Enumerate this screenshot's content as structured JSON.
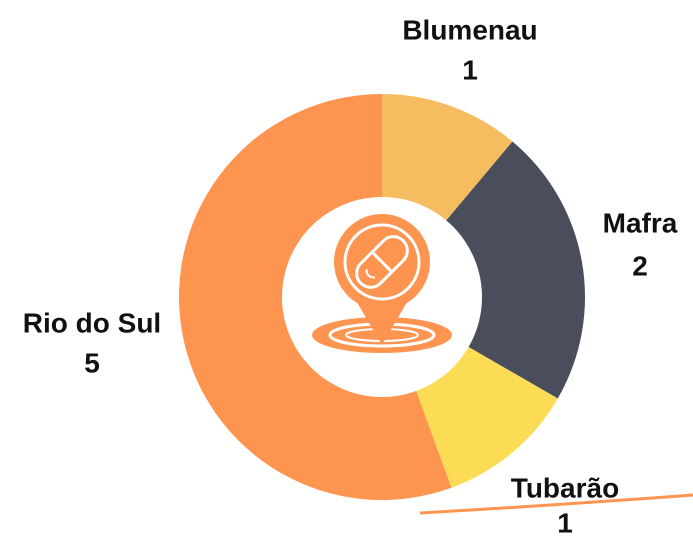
{
  "chart_data": {
    "type": "donut",
    "categories": [
      "Blumenau",
      "Mafra",
      "Tubarão",
      "Rio do Sul"
    ],
    "values": [
      1,
      2,
      1,
      5
    ],
    "colors": [
      "#f6bd60",
      "#4a4e5c",
      "#fcdc55",
      "#fd9550"
    ]
  }
}
